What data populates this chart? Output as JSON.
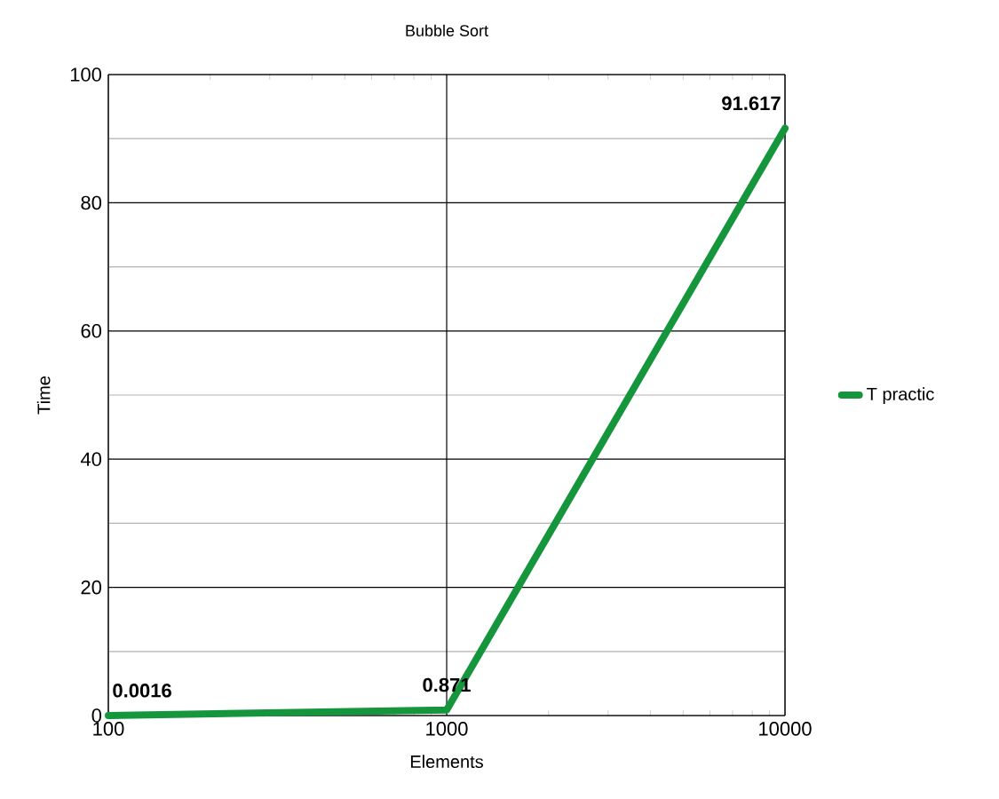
{
  "chart_data": {
    "type": "line",
    "title": "Bubble Sort",
    "xlabel": "Elements",
    "ylabel": "Time",
    "x": [
      100,
      1000,
      10000
    ],
    "series": [
      {
        "name": "T practic",
        "color": "#16963c",
        "values": [
          0.0016,
          0.871,
          91.617
        ]
      }
    ],
    "log": "x",
    "xlim": [
      100,
      10000
    ],
    "xticks": [
      100,
      1000,
      10000
    ],
    "ylim": [
      0,
      100
    ],
    "yticks": [
      0,
      {
        "value": 10,
        "label": null
      },
      20,
      {
        "value": 30,
        "label": null
      },
      40,
      {
        "value": 50,
        "label": null
      },
      60,
      {
        "value": 70,
        "label": null
      },
      80,
      {
        "value": 90,
        "label": null
      },
      100
    ],
    "grid": true,
    "legend": "right",
    "data_labels": true
  }
}
